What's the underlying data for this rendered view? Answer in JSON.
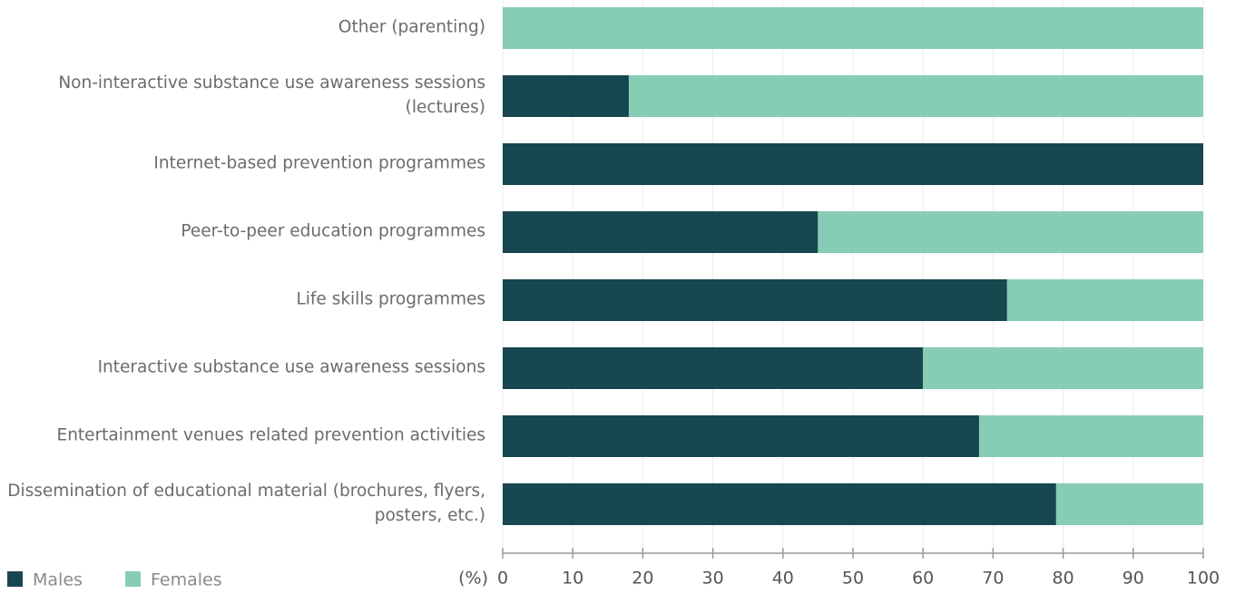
{
  "chart_data": {
    "type": "bar",
    "orientation": "horizontal",
    "stacked": true,
    "categories": [
      "Other (parenting)",
      "Non-interactive substance use awareness sessions (lectures)",
      "Internet-based prevention programmes",
      "Peer-to-peer education programmes",
      "Life skills programmes",
      "Interactive substance use awareness sessions",
      "Entertainment venues related prevention activities",
      "Dissemination of educational material (brochures, flyers, posters, etc.)"
    ],
    "series": [
      {
        "name": "Males",
        "color": "#17474f",
        "values": [
          0,
          18,
          100,
          45,
          72,
          60,
          68,
          79
        ]
      },
      {
        "name": "Females",
        "color": "#87cdb5",
        "values": [
          100,
          82,
          0,
          55,
          28,
          40,
          32,
          21
        ]
      }
    ],
    "x_label": "(%)",
    "xlim": [
      0,
      100
    ],
    "xticks": [
      0,
      10,
      20,
      30,
      40,
      50,
      60,
      70,
      80,
      90,
      100
    ],
    "grid": true,
    "legend": "bottom-left"
  }
}
